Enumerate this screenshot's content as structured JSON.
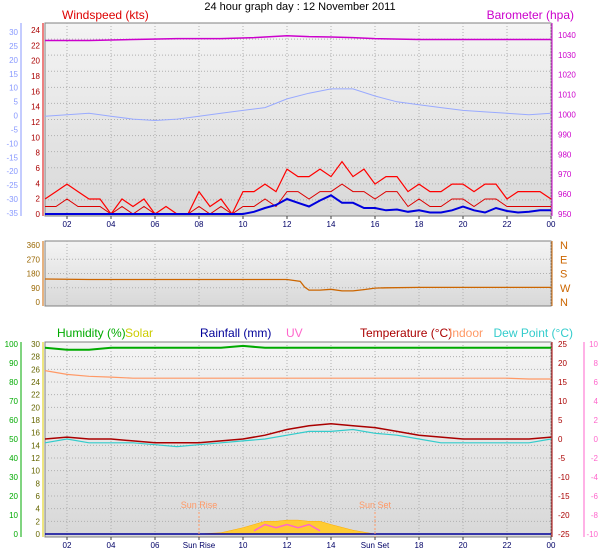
{
  "title": "24 hour graph day : 12 November 2011",
  "colors": {
    "wind": "#dd0000",
    "gust": "#ff0000",
    "windavg": "#0000dd",
    "baro": "#cc00cc",
    "temp": "#aa0000",
    "indoor": "#ff9966",
    "dew": "#33cccc",
    "humidity": "#00aa00",
    "solar": "#ffcc33",
    "rain": "#000099",
    "uv": "#ff66cc",
    "dir": "#cc6600",
    "appTemp": "#99aaff",
    "leftBlue": "#8899ff"
  },
  "x_labels": [
    "02",
    "04",
    "06",
    "08",
    "10",
    "12",
    "14",
    "16",
    "18",
    "20",
    "22",
    "00"
  ],
  "bottom_x_labels": [
    "02",
    "04",
    "06",
    "Sun Rise",
    "10",
    "12",
    "14",
    "Sun Set",
    "18",
    "20",
    "22",
    "00"
  ],
  "chart_data": [
    {
      "type": "line",
      "name": "wind-barometer",
      "title": "24 hour graph day : 12 November 2011",
      "left_label": "Windspeed (kts)",
      "right_label": "Barometer (hpa)",
      "x_range": [
        1,
        24
      ],
      "left_axis": {
        "range": [
          0,
          25
        ],
        "ticks": [
          "0",
          "2",
          "4",
          "6",
          "8",
          "10",
          "12",
          "14",
          "16",
          "18",
          "20",
          "22",
          "24"
        ]
      },
      "right_axis": {
        "range": [
          949,
          1046
        ],
        "ticks": [
          "950",
          "960",
          "970",
          "980",
          "990",
          "1000",
          "1010",
          "1020",
          "1030",
          "1040"
        ]
      },
      "outer_left_axis": {
        "ticks": [
          "-35",
          "-30",
          "-25",
          "-20",
          "-15",
          "-10",
          "-5",
          "0",
          "5",
          "10",
          "15",
          "20",
          "25",
          "30"
        ]
      },
      "series": [
        {
          "key": "baro",
          "axis": "right",
          "x": [
            1,
            3,
            5,
            7,
            9,
            10.5,
            11.3,
            12,
            13,
            14,
            15,
            16,
            18,
            20,
            22,
            24
          ],
          "y": [
            1039,
            1039,
            1039.5,
            1040,
            1040,
            1040.5,
            1041,
            1041.5,
            1041,
            1040.8,
            1040.5,
            1040,
            1039.5,
            1039.5,
            1039.5,
            1039.5
          ]
        },
        {
          "key": "appTemp",
          "axis": "outer_left",
          "x": [
            1,
            2,
            3,
            4,
            5,
            6,
            7,
            8,
            9,
            10,
            11,
            12,
            13,
            14,
            15,
            16,
            17,
            18,
            19,
            20,
            21,
            22,
            23,
            24
          ],
          "y": [
            -1,
            -0.5,
            0,
            -1,
            -2,
            -2.5,
            -2,
            -1,
            0,
            1,
            2,
            5,
            7,
            8.5,
            8.5,
            6,
            4,
            3,
            2,
            1,
            0.5,
            0,
            -0.5,
            0
          ]
        },
        {
          "key": "gust",
          "axis": "left",
          "x": [
            1,
            1.5,
            2,
            2.5,
            3,
            3.5,
            4,
            4.5,
            5,
            5.5,
            6,
            6.5,
            7,
            7.5,
            8,
            8.5,
            9,
            9.5,
            10,
            10.5,
            11,
            11.5,
            12,
            12.5,
            13,
            13.5,
            14,
            14.5,
            15,
            15.5,
            16,
            16.5,
            17,
            17.5,
            18,
            18.5,
            19,
            19.5,
            20,
            20.5,
            21,
            21.5,
            22,
            22.5,
            23,
            23.5,
            24
          ],
          "y": [
            2,
            3,
            4,
            3,
            2,
            2,
            0,
            2,
            1,
            2,
            0,
            1,
            0,
            0,
            3,
            1,
            2,
            0,
            3,
            3,
            4,
            3,
            6,
            5,
            5,
            6,
            5,
            7,
            5,
            6,
            4,
            5,
            5,
            3,
            4,
            3,
            3,
            4,
            4,
            3,
            4,
            4,
            2,
            3,
            3,
            3,
            2
          ]
        },
        {
          "key": "wind",
          "axis": "left",
          "x": [
            1,
            1.5,
            2,
            2.5,
            3,
            3.5,
            4,
            4.5,
            5,
            5.5,
            6,
            6.5,
            7,
            7.5,
            8,
            8.5,
            9,
            9.5,
            10,
            10.5,
            11,
            11.5,
            12,
            12.5,
            13,
            13.5,
            14,
            14.5,
            15,
            15.5,
            16,
            16.5,
            17,
            17.5,
            18,
            18.5,
            19,
            19.5,
            20,
            20.5,
            21,
            21.5,
            22,
            22.5,
            23,
            23.5,
            24
          ],
          "y": [
            1,
            1,
            2,
            1,
            1,
            1,
            0,
            1,
            0,
            1,
            0,
            0,
            0,
            0,
            1,
            0,
            1,
            0,
            1,
            1,
            2,
            1,
            3,
            3,
            2,
            3,
            3,
            4,
            3,
            3,
            2,
            3,
            3,
            1,
            2,
            1,
            1,
            2,
            2,
            1,
            2,
            2,
            1,
            1,
            1,
            1,
            1
          ]
        },
        {
          "key": "windavg",
          "axis": "left",
          "x": [
            1,
            2,
            3,
            4,
            5,
            6,
            7,
            8,
            9,
            10,
            10.5,
            11,
            11.5,
            12,
            12.5,
            13,
            13.5,
            14,
            14.5,
            15,
            15.5,
            16,
            16.5,
            17,
            17.5,
            18,
            18.5,
            19,
            19.5,
            20,
            20.5,
            21,
            21.5,
            22,
            22.5,
            23,
            23.5,
            24
          ],
          "y": [
            0,
            0,
            0,
            0,
            0,
            0,
            0,
            0,
            0,
            0,
            0.3,
            0.8,
            1.2,
            2,
            1.5,
            1,
            1.8,
            2.5,
            1.5,
            1.5,
            0.8,
            0.8,
            0.5,
            0.6,
            0.3,
            0.5,
            0.2,
            0.2,
            0.5,
            1,
            0.5,
            0.2,
            0.8,
            0.4,
            0.2,
            0.3,
            0.5,
            0.5
          ]
        }
      ]
    },
    {
      "type": "line",
      "name": "wind-direction",
      "x_range": [
        1,
        24
      ],
      "left_axis": {
        "range": [
          0,
          360
        ],
        "ticks": [
          "0",
          "90",
          "180",
          "270",
          "360"
        ]
      },
      "right_axis": {
        "ticks": [
          "N",
          "W",
          "S",
          "E",
          "N"
        ]
      },
      "series": [
        {
          "key": "dir",
          "axis": "left",
          "x": [
            1,
            3,
            5,
            7,
            9,
            10,
            11,
            12,
            12.6,
            12.8,
            13,
            13.5,
            14,
            14.5,
            15,
            15.5,
            16,
            16.5,
            18,
            20,
            22,
            24
          ],
          "y": [
            145,
            142,
            142,
            142,
            142,
            142,
            142,
            142,
            130,
            95,
            75,
            75,
            80,
            70,
            70,
            78,
            88,
            90,
            92,
            92,
            92,
            92
          ]
        }
      ]
    },
    {
      "type": "line",
      "name": "temperature-humidity",
      "labels": [
        "Humidity (%)",
        "Solar",
        "Rainfall (mm)",
        "UV",
        "Temperature (°C)",
        "Indoor",
        "Dew Point (°C)"
      ],
      "x_range": [
        1,
        24
      ],
      "annotations": [
        "Sun Rise",
        "Sun Set"
      ],
      "sunrise_x": 8,
      "sunset_x": 16,
      "left_outer_axis": {
        "range": [
          0,
          100
        ],
        "ticks": [
          "0",
          "10",
          "20",
          "30",
          "40",
          "50",
          "60",
          "70",
          "80",
          "90",
          "100"
        ]
      },
      "left_inner_axis": {
        "range": [
          0,
          30
        ],
        "ticks": [
          "0",
          "2",
          "4",
          "6",
          "8",
          "10",
          "12",
          "14",
          "16",
          "18",
          "20",
          "22",
          "24",
          "26",
          "28",
          "30"
        ]
      },
      "right_inner_axis": {
        "range": [
          -25,
          25
        ],
        "ticks": [
          "-25",
          "-20",
          "-15",
          "-10",
          "-5",
          "0",
          "5",
          "10",
          "15",
          "20",
          "25"
        ]
      },
      "right_outer_axis": {
        "range": [
          -10,
          10
        ],
        "ticks": [
          "-10",
          "-8",
          "-6",
          "-4",
          "-2",
          "0",
          "2",
          "4",
          "6",
          "8",
          "10"
        ]
      },
      "series": [
        {
          "key": "humidity",
          "axis": "left_outer",
          "x": [
            1,
            2,
            3,
            4,
            5,
            6,
            7,
            8,
            9,
            10,
            11,
            12,
            13,
            14,
            15,
            16,
            17,
            18,
            19,
            20,
            21,
            22,
            23,
            24
          ],
          "y": [
            98,
            97,
            97,
            98,
            98,
            98,
            98,
            98,
            98,
            99,
            98,
            98,
            98,
            98,
            98,
            98,
            98,
            98,
            98,
            98,
            98,
            98,
            98,
            98
          ]
        },
        {
          "key": "indoor",
          "axis": "right_inner",
          "x": [
            1,
            2,
            3,
            4,
            5,
            6,
            7,
            8,
            9,
            10,
            11,
            12,
            13,
            14,
            15,
            16,
            17,
            18,
            19,
            20,
            21,
            22,
            23,
            24
          ],
          "y": [
            18,
            17,
            16.5,
            16.3,
            16,
            16,
            16,
            16,
            16,
            16,
            16,
            16,
            16,
            16,
            16,
            16,
            16,
            16,
            16,
            16,
            16,
            16,
            15.8,
            15.8
          ]
        },
        {
          "key": "dew",
          "axis": "right_inner",
          "x": [
            1,
            2,
            3,
            4,
            5,
            6,
            7,
            8,
            9,
            10,
            11,
            12,
            13,
            14,
            15,
            16,
            17,
            18,
            19,
            20,
            21,
            22,
            23,
            24
          ],
          "y": [
            -1,
            0,
            -1,
            -1,
            -1,
            -1.5,
            -2,
            -1.5,
            -1,
            -0.5,
            0,
            1,
            2,
            2,
            2.5,
            1.5,
            1,
            0,
            -1,
            -1,
            -1,
            -1,
            -1,
            0
          ]
        },
        {
          "key": "temp",
          "axis": "right_inner",
          "x": [
            1,
            2,
            3,
            4,
            5,
            6,
            7,
            8,
            9,
            10,
            11,
            12,
            13,
            14,
            15,
            16,
            17,
            18,
            19,
            20,
            21,
            22,
            23,
            24
          ],
          "y": [
            0,
            0.5,
            0,
            0,
            -0.5,
            -1,
            -1,
            -1,
            -0.5,
            0,
            1,
            2.5,
            3.5,
            4,
            3.5,
            3,
            2,
            1,
            0.5,
            0,
            0,
            0,
            0,
            0.5
          ]
        },
        {
          "key": "solar",
          "axis": "left_inner",
          "x": [
            8,
            9,
            10,
            10.5,
            11,
            11.5,
            12,
            12.5,
            13,
            13.5,
            14,
            15,
            16
          ],
          "y": [
            0,
            0.2,
            1,
            1.5,
            2,
            2,
            2.2,
            2.2,
            2,
            2,
            1.5,
            0.6,
            0
          ]
        },
        {
          "key": "uv",
          "axis": "left_inner",
          "x": [
            10.5,
            11,
            11.5,
            12,
            12.5,
            13,
            13.5
          ],
          "y": [
            0.5,
            1.5,
            1,
            1.5,
            1,
            1.5,
            0.5
          ]
        },
        {
          "key": "rain",
          "axis": "left_inner",
          "x": [
            1,
            24
          ],
          "y": [
            0,
            0
          ]
        }
      ]
    }
  ]
}
